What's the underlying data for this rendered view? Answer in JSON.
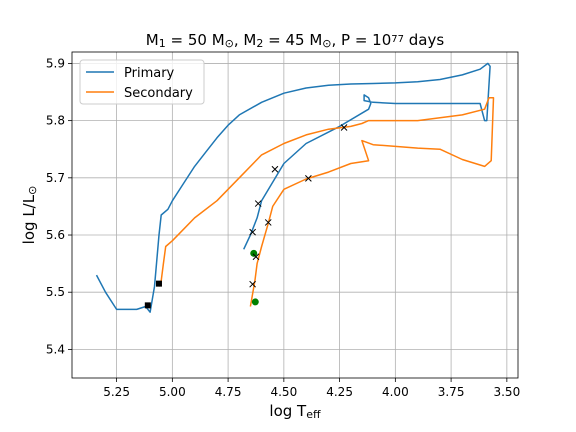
{
  "chart_data": {
    "type": "line",
    "title": "M₁ = 50 M⊙, M₂ = 45 M⊙, P = 10⁷⁷ days",
    "xlabel": "log T_eff",
    "ylabel": "log L/L⊙",
    "xlim": [
      5.45,
      3.45
    ],
    "ylim": [
      5.35,
      5.92
    ],
    "x_inverted": true,
    "xticks": [
      5.25,
      5.0,
      4.75,
      4.5,
      4.25,
      4.0,
      3.75,
      3.5
    ],
    "xtick_labels": [
      "5.25",
      "5.00",
      "4.75",
      "4.50",
      "4.25",
      "4.00",
      "3.75",
      "3.50"
    ],
    "yticks": [
      5.4,
      5.5,
      5.6,
      5.7,
      5.8,
      5.9
    ],
    "ytick_labels": [
      "5.4",
      "5.5",
      "5.6",
      "5.7",
      "5.8",
      "5.9"
    ],
    "grid": true,
    "legend_position": "top-left",
    "series": [
      {
        "name": "Primary",
        "color": "#1f77b4",
        "points": [
          [
            5.34,
            5.53
          ],
          [
            5.3,
            5.5
          ],
          [
            5.25,
            5.47
          ],
          [
            5.2,
            5.47
          ],
          [
            5.16,
            5.47
          ],
          [
            5.12,
            5.475
          ],
          [
            5.1,
            5.465
          ],
          [
            5.08,
            5.51
          ],
          [
            5.06,
            5.6
          ],
          [
            5.05,
            5.635
          ],
          [
            5.02,
            5.645
          ],
          [
            5.0,
            5.66
          ],
          [
            4.95,
            5.69
          ],
          [
            4.9,
            5.72
          ],
          [
            4.85,
            5.745
          ],
          [
            4.8,
            5.77
          ],
          [
            4.75,
            5.792
          ],
          [
            4.7,
            5.81
          ],
          [
            4.6,
            5.832
          ],
          [
            4.5,
            5.848
          ],
          [
            4.4,
            5.857
          ],
          [
            4.3,
            5.862
          ],
          [
            4.2,
            5.864
          ],
          [
            4.1,
            5.865
          ],
          [
            4.0,
            5.866
          ],
          [
            3.9,
            5.868
          ],
          [
            3.8,
            5.872
          ],
          [
            3.7,
            5.88
          ],
          [
            3.62,
            5.89
          ],
          [
            3.585,
            5.9
          ],
          [
            3.575,
            5.895
          ],
          [
            3.59,
            5.8
          ],
          [
            3.6,
            5.8
          ],
          [
            3.62,
            5.83
          ],
          [
            3.65,
            5.83
          ],
          [
            3.75,
            5.83
          ],
          [
            3.9,
            5.83
          ],
          [
            4.0,
            5.83
          ],
          [
            4.1,
            5.832
          ],
          [
            4.14,
            5.835
          ],
          [
            4.14,
            5.845
          ],
          [
            4.12,
            5.84
          ],
          [
            4.11,
            5.83
          ],
          [
            4.12,
            5.82
          ],
          [
            4.25,
            5.79
          ],
          [
            4.4,
            5.76
          ],
          [
            4.5,
            5.725
          ],
          [
            4.6,
            5.66
          ],
          [
            4.62,
            5.63
          ],
          [
            4.65,
            5.6
          ],
          [
            4.68,
            5.575
          ]
        ],
        "markers": [
          {
            "x": 5.11,
            "y": 5.477,
            "shape": "square",
            "color": "#000000"
          },
          {
            "x": 5.06,
            "y": 5.515,
            "shape": "square",
            "color": "#000000"
          },
          {
            "x": 4.64,
            "y": 5.605,
            "shape": "x",
            "color": "#000000"
          },
          {
            "x": 4.615,
            "y": 5.655,
            "shape": "x",
            "color": "#000000"
          },
          {
            "x": 4.54,
            "y": 5.715,
            "shape": "x",
            "color": "#000000"
          },
          {
            "x": 4.23,
            "y": 5.788,
            "shape": "x",
            "color": "#000000"
          },
          {
            "x": 4.635,
            "y": 5.568,
            "shape": "circle",
            "color": "#008000"
          }
        ]
      },
      {
        "name": "Secondary",
        "color": "#ff7f0e",
        "points": [
          [
            4.65,
            5.475
          ],
          [
            4.63,
            5.52
          ],
          [
            4.62,
            5.55
          ],
          [
            4.6,
            5.58
          ],
          [
            4.57,
            5.62
          ],
          [
            4.55,
            5.65
          ],
          [
            4.5,
            5.68
          ],
          [
            4.4,
            5.698
          ],
          [
            4.3,
            5.71
          ],
          [
            4.2,
            5.725
          ],
          [
            4.12,
            5.73
          ],
          [
            4.15,
            5.765
          ],
          [
            4.1,
            5.758
          ],
          [
            4.0,
            5.755
          ],
          [
            3.9,
            5.752
          ],
          [
            3.8,
            5.75
          ],
          [
            3.7,
            5.732
          ],
          [
            3.6,
            5.72
          ],
          [
            3.57,
            5.73
          ],
          [
            3.56,
            5.84
          ],
          [
            3.58,
            5.84
          ],
          [
            3.6,
            5.82
          ],
          [
            3.7,
            5.81
          ],
          [
            3.8,
            5.805
          ],
          [
            3.9,
            5.8
          ],
          [
            4.0,
            5.8
          ],
          [
            4.1,
            5.8
          ],
          [
            4.12,
            5.8
          ],
          [
            4.15,
            5.795
          ],
          [
            4.2,
            5.79
          ],
          [
            4.3,
            5.785
          ],
          [
            4.4,
            5.775
          ],
          [
            4.5,
            5.76
          ],
          [
            4.6,
            5.74
          ],
          [
            4.7,
            5.7
          ],
          [
            4.8,
            5.66
          ],
          [
            4.9,
            5.63
          ],
          [
            4.95,
            5.61
          ],
          [
            5.0,
            5.59
          ],
          [
            5.03,
            5.58
          ],
          [
            5.04,
            5.55
          ],
          [
            5.05,
            5.52
          ],
          [
            5.06,
            5.51
          ]
        ],
        "markers": [
          {
            "x": 4.625,
            "y": 5.562,
            "shape": "x",
            "color": "#000000"
          },
          {
            "x": 4.57,
            "y": 5.622,
            "shape": "x",
            "color": "#000000"
          },
          {
            "x": 4.39,
            "y": 5.699,
            "shape": "x",
            "color": "#000000"
          },
          {
            "x": 4.64,
            "y": 5.514,
            "shape": "x",
            "color": "#000000"
          },
          {
            "x": 4.628,
            "y": 5.483,
            "shape": "circle",
            "color": "#008000"
          }
        ]
      }
    ]
  }
}
